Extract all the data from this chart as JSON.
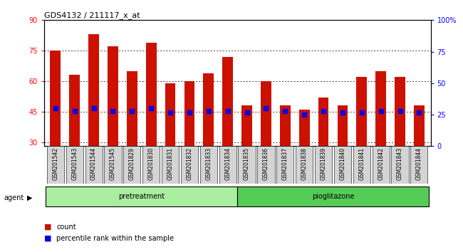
{
  "title": "GDS4132 / 211117_x_at",
  "samples": [
    "GSM201542",
    "GSM201543",
    "GSM201544",
    "GSM201545",
    "GSM201829",
    "GSM201830",
    "GSM201831",
    "GSM201832",
    "GSM201833",
    "GSM201834",
    "GSM201835",
    "GSM201836",
    "GSM201837",
    "GSM201838",
    "GSM201839",
    "GSM201840",
    "GSM201841",
    "GSM201842",
    "GSM201843",
    "GSM201844"
  ],
  "bar_values": [
    75,
    63,
    83,
    77,
    65,
    79,
    59,
    60,
    64,
    72,
    48,
    60,
    48,
    46,
    52,
    48,
    62,
    65,
    62,
    48
  ],
  "dot_values_pct": [
    30,
    28,
    30,
    28,
    28,
    30,
    27,
    27,
    28,
    28,
    27,
    30,
    28,
    25,
    28,
    27,
    27,
    28,
    28,
    27
  ],
  "ylim_left": [
    28,
    90
  ],
  "ylim_right": [
    0,
    100
  ],
  "yticks_left": [
    30,
    45,
    60,
    75,
    90
  ],
  "yticks_right": [
    0,
    25,
    50,
    75,
    100
  ],
  "ytick_labels_right": [
    "0",
    "25",
    "50",
    "75",
    "100%"
  ],
  "bar_color": "#cc1100",
  "dot_color": "#0000ee",
  "bar_width": 0.55,
  "legend_count": "count",
  "legend_pct": "percentile rank within the sample",
  "agent_label": "agent",
  "pretreatment_color": "#aaeea0",
  "pioglitazone_color": "#55cc55"
}
